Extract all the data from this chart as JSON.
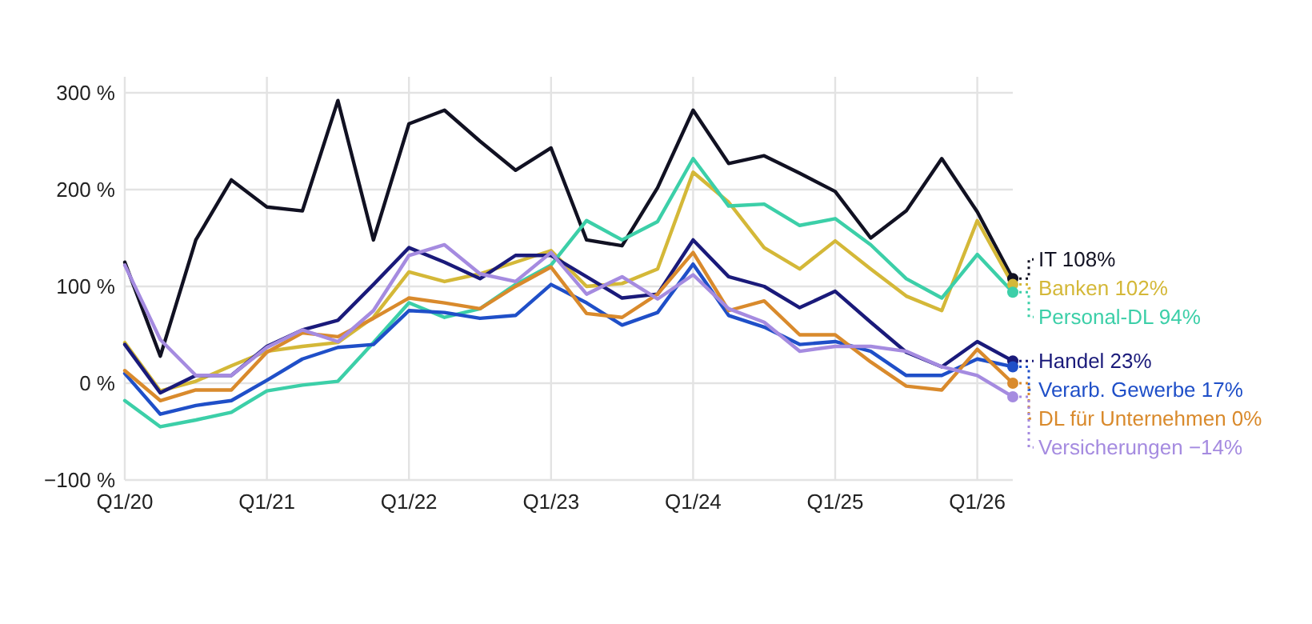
{
  "chart_data": {
    "type": "line",
    "categories": [
      "Q1/20",
      null,
      null,
      null,
      "Q1/21",
      null,
      null,
      null,
      "Q1/22",
      null,
      null,
      null,
      "Q1/23",
      null,
      null,
      null,
      "Q1/24",
      null,
      null,
      null,
      "Q1/25",
      null,
      null,
      null,
      "Q1/26",
      null
    ],
    "ylim": [
      -100,
      300
    ],
    "yticks": [
      {
        "value": -100,
        "label": "−100 %"
      },
      {
        "value": 0,
        "label": "0 %"
      },
      {
        "value": 100,
        "label": "100 %"
      },
      {
        "value": 200,
        "label": "200 %"
      },
      {
        "value": 300,
        "label": "300 %"
      }
    ],
    "grid": true,
    "series": [
      {
        "name": "IT",
        "color": "#111122",
        "values": [
          125,
          28,
          148,
          210,
          182,
          178,
          292,
          148,
          268,
          282,
          250,
          220,
          243,
          148,
          142,
          202,
          282,
          227,
          235,
          217,
          198,
          150,
          178,
          232,
          177,
          108
        ],
        "value_labels": [
          null,
          null,
          null,
          null,
          null,
          null,
          null,
          null,
          null,
          null,
          null,
          null,
          null,
          null,
          null,
          null,
          null,
          null,
          null,
          null,
          null,
          null,
          null,
          null,
          null,
          "108%"
        ]
      },
      {
        "name": "Banken",
        "color": "#d4b838",
        "values": [
          42,
          -8,
          2,
          18,
          33,
          38,
          42,
          68,
          115,
          105,
          113,
          125,
          137,
          100,
          103,
          118,
          218,
          187,
          140,
          118,
          147,
          118,
          90,
          75,
          168,
          102
        ],
        "value_labels": [
          null,
          null,
          null,
          null,
          null,
          null,
          null,
          null,
          null,
          null,
          null,
          null,
          null,
          null,
          null,
          null,
          null,
          null,
          null,
          null,
          null,
          null,
          null,
          null,
          null,
          "102%"
        ]
      },
      {
        "name": "Personal-DL",
        "color": "#3ccfa8",
        "values": [
          -18,
          -45,
          -38,
          -30,
          -8,
          -2,
          2,
          42,
          83,
          68,
          77,
          102,
          122,
          168,
          148,
          167,
          232,
          183,
          185,
          163,
          170,
          143,
          108,
          88,
          133,
          94
        ],
        "value_labels": [
          null,
          null,
          null,
          null,
          null,
          null,
          null,
          null,
          null,
          null,
          null,
          null,
          null,
          null,
          null,
          null,
          null,
          null,
          null,
          null,
          null,
          null,
          null,
          null,
          null,
          "94%"
        ]
      },
      {
        "name": "Handel",
        "color": "#1a1a7a",
        "values": [
          40,
          -10,
          8,
          8,
          38,
          55,
          65,
          102,
          140,
          125,
          108,
          132,
          132,
          110,
          88,
          92,
          148,
          110,
          100,
          78,
          95,
          63,
          32,
          17,
          43,
          23
        ],
        "value_labels": [
          null,
          null,
          null,
          null,
          null,
          null,
          null,
          null,
          null,
          null,
          null,
          null,
          null,
          null,
          null,
          null,
          null,
          null,
          null,
          null,
          null,
          null,
          null,
          null,
          null,
          "23%"
        ]
      },
      {
        "name": "Verarb. Gewerbe",
        "color": "#1f4fc8",
        "values": [
          10,
          -32,
          -23,
          -18,
          3,
          25,
          37,
          40,
          75,
          73,
          67,
          70,
          102,
          83,
          60,
          73,
          123,
          70,
          58,
          40,
          43,
          33,
          8,
          8,
          25,
          17
        ],
        "value_labels": [
          null,
          null,
          null,
          null,
          null,
          null,
          null,
          null,
          null,
          null,
          null,
          null,
          null,
          null,
          null,
          null,
          null,
          null,
          null,
          null,
          null,
          null,
          null,
          null,
          null,
          "17%"
        ]
      },
      {
        "name": "DL für Unternehmen",
        "color": "#d98a2c",
        "values": [
          13,
          -18,
          -7,
          -7,
          32,
          52,
          48,
          67,
          88,
          83,
          77,
          100,
          120,
          72,
          68,
          92,
          135,
          75,
          85,
          50,
          50,
          22,
          -3,
          -7,
          35,
          0
        ],
        "value_labels": [
          null,
          null,
          null,
          null,
          null,
          null,
          null,
          null,
          null,
          null,
          null,
          null,
          null,
          null,
          null,
          null,
          null,
          null,
          null,
          null,
          null,
          null,
          null,
          null,
          null,
          "0%"
        ]
      },
      {
        "name": "Versicherungen",
        "color": "#a58be0",
        "values": [
          122,
          45,
          8,
          8,
          37,
          55,
          43,
          75,
          132,
          143,
          113,
          105,
          135,
          92,
          110,
          87,
          112,
          77,
          63,
          33,
          38,
          38,
          33,
          17,
          8,
          -14
        ],
        "value_labels": [
          null,
          null,
          null,
          null,
          null,
          null,
          null,
          null,
          null,
          null,
          null,
          null,
          null,
          null,
          null,
          null,
          null,
          null,
          null,
          null,
          null,
          null,
          null,
          null,
          null,
          "−14%"
        ]
      }
    ]
  }
}
